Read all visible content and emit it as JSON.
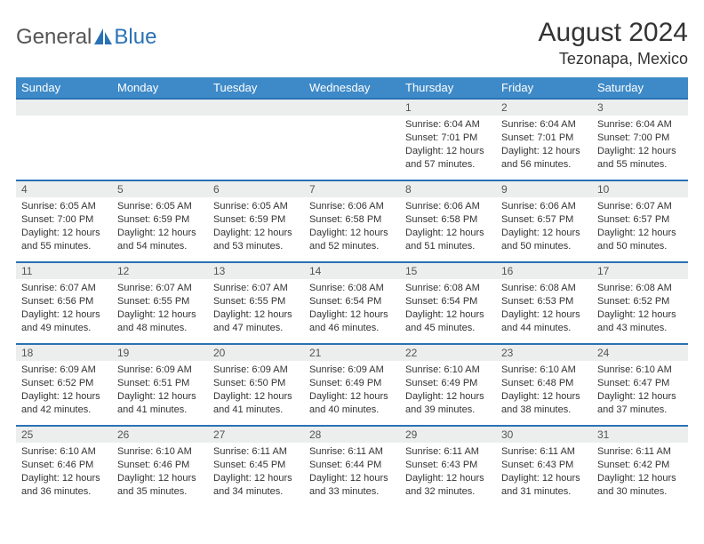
{
  "logo": {
    "text_general": "General",
    "text_blue": "Blue"
  },
  "title": "August 2024",
  "location": "Tezonapa, Mexico",
  "colors": {
    "header_bg": "#3e8ac8",
    "header_text": "#ffffff",
    "border": "#2a72b5",
    "daynum_bg": "#eceded",
    "text": "#333333"
  },
  "weekdays": [
    "Sunday",
    "Monday",
    "Tuesday",
    "Wednesday",
    "Thursday",
    "Friday",
    "Saturday"
  ],
  "weeks": [
    [
      {
        "day": null
      },
      {
        "day": null
      },
      {
        "day": null
      },
      {
        "day": null
      },
      {
        "day": "1",
        "sunrise": "Sunrise: 6:04 AM",
        "sunset": "Sunset: 7:01 PM",
        "daylight": "Daylight: 12 hours and 57 minutes."
      },
      {
        "day": "2",
        "sunrise": "Sunrise: 6:04 AM",
        "sunset": "Sunset: 7:01 PM",
        "daylight": "Daylight: 12 hours and 56 minutes."
      },
      {
        "day": "3",
        "sunrise": "Sunrise: 6:04 AM",
        "sunset": "Sunset: 7:00 PM",
        "daylight": "Daylight: 12 hours and 55 minutes."
      }
    ],
    [
      {
        "day": "4",
        "sunrise": "Sunrise: 6:05 AM",
        "sunset": "Sunset: 7:00 PM",
        "daylight": "Daylight: 12 hours and 55 minutes."
      },
      {
        "day": "5",
        "sunrise": "Sunrise: 6:05 AM",
        "sunset": "Sunset: 6:59 PM",
        "daylight": "Daylight: 12 hours and 54 minutes."
      },
      {
        "day": "6",
        "sunrise": "Sunrise: 6:05 AM",
        "sunset": "Sunset: 6:59 PM",
        "daylight": "Daylight: 12 hours and 53 minutes."
      },
      {
        "day": "7",
        "sunrise": "Sunrise: 6:06 AM",
        "sunset": "Sunset: 6:58 PM",
        "daylight": "Daylight: 12 hours and 52 minutes."
      },
      {
        "day": "8",
        "sunrise": "Sunrise: 6:06 AM",
        "sunset": "Sunset: 6:58 PM",
        "daylight": "Daylight: 12 hours and 51 minutes."
      },
      {
        "day": "9",
        "sunrise": "Sunrise: 6:06 AM",
        "sunset": "Sunset: 6:57 PM",
        "daylight": "Daylight: 12 hours and 50 minutes."
      },
      {
        "day": "10",
        "sunrise": "Sunrise: 6:07 AM",
        "sunset": "Sunset: 6:57 PM",
        "daylight": "Daylight: 12 hours and 50 minutes."
      }
    ],
    [
      {
        "day": "11",
        "sunrise": "Sunrise: 6:07 AM",
        "sunset": "Sunset: 6:56 PM",
        "daylight": "Daylight: 12 hours and 49 minutes."
      },
      {
        "day": "12",
        "sunrise": "Sunrise: 6:07 AM",
        "sunset": "Sunset: 6:55 PM",
        "daylight": "Daylight: 12 hours and 48 minutes."
      },
      {
        "day": "13",
        "sunrise": "Sunrise: 6:07 AM",
        "sunset": "Sunset: 6:55 PM",
        "daylight": "Daylight: 12 hours and 47 minutes."
      },
      {
        "day": "14",
        "sunrise": "Sunrise: 6:08 AM",
        "sunset": "Sunset: 6:54 PM",
        "daylight": "Daylight: 12 hours and 46 minutes."
      },
      {
        "day": "15",
        "sunrise": "Sunrise: 6:08 AM",
        "sunset": "Sunset: 6:54 PM",
        "daylight": "Daylight: 12 hours and 45 minutes."
      },
      {
        "day": "16",
        "sunrise": "Sunrise: 6:08 AM",
        "sunset": "Sunset: 6:53 PM",
        "daylight": "Daylight: 12 hours and 44 minutes."
      },
      {
        "day": "17",
        "sunrise": "Sunrise: 6:08 AM",
        "sunset": "Sunset: 6:52 PM",
        "daylight": "Daylight: 12 hours and 43 minutes."
      }
    ],
    [
      {
        "day": "18",
        "sunrise": "Sunrise: 6:09 AM",
        "sunset": "Sunset: 6:52 PM",
        "daylight": "Daylight: 12 hours and 42 minutes."
      },
      {
        "day": "19",
        "sunrise": "Sunrise: 6:09 AM",
        "sunset": "Sunset: 6:51 PM",
        "daylight": "Daylight: 12 hours and 41 minutes."
      },
      {
        "day": "20",
        "sunrise": "Sunrise: 6:09 AM",
        "sunset": "Sunset: 6:50 PM",
        "daylight": "Daylight: 12 hours and 41 minutes."
      },
      {
        "day": "21",
        "sunrise": "Sunrise: 6:09 AM",
        "sunset": "Sunset: 6:49 PM",
        "daylight": "Daylight: 12 hours and 40 minutes."
      },
      {
        "day": "22",
        "sunrise": "Sunrise: 6:10 AM",
        "sunset": "Sunset: 6:49 PM",
        "daylight": "Daylight: 12 hours and 39 minutes."
      },
      {
        "day": "23",
        "sunrise": "Sunrise: 6:10 AM",
        "sunset": "Sunset: 6:48 PM",
        "daylight": "Daylight: 12 hours and 38 minutes."
      },
      {
        "day": "24",
        "sunrise": "Sunrise: 6:10 AM",
        "sunset": "Sunset: 6:47 PM",
        "daylight": "Daylight: 12 hours and 37 minutes."
      }
    ],
    [
      {
        "day": "25",
        "sunrise": "Sunrise: 6:10 AM",
        "sunset": "Sunset: 6:46 PM",
        "daylight": "Daylight: 12 hours and 36 minutes."
      },
      {
        "day": "26",
        "sunrise": "Sunrise: 6:10 AM",
        "sunset": "Sunset: 6:46 PM",
        "daylight": "Daylight: 12 hours and 35 minutes."
      },
      {
        "day": "27",
        "sunrise": "Sunrise: 6:11 AM",
        "sunset": "Sunset: 6:45 PM",
        "daylight": "Daylight: 12 hours and 34 minutes."
      },
      {
        "day": "28",
        "sunrise": "Sunrise: 6:11 AM",
        "sunset": "Sunset: 6:44 PM",
        "daylight": "Daylight: 12 hours and 33 minutes."
      },
      {
        "day": "29",
        "sunrise": "Sunrise: 6:11 AM",
        "sunset": "Sunset: 6:43 PM",
        "daylight": "Daylight: 12 hours and 32 minutes."
      },
      {
        "day": "30",
        "sunrise": "Sunrise: 6:11 AM",
        "sunset": "Sunset: 6:43 PM",
        "daylight": "Daylight: 12 hours and 31 minutes."
      },
      {
        "day": "31",
        "sunrise": "Sunrise: 6:11 AM",
        "sunset": "Sunset: 6:42 PM",
        "daylight": "Daylight: 12 hours and 30 minutes."
      }
    ]
  ]
}
